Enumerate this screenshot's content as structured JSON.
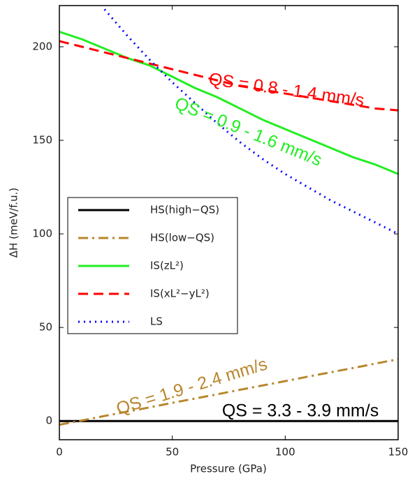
{
  "chart_data": {
    "type": "line",
    "xlabel": "Pressure (GPa)",
    "ylabel": "ΔH (meV/f.u.)",
    "x": [
      0,
      10,
      20,
      30,
      40,
      50,
      60,
      70,
      80,
      90,
      100,
      110,
      120,
      130,
      140,
      150
    ],
    "series": [
      {
        "name": "HS(high−QS)",
        "color": "#000000",
        "linestyle": "solid",
        "values": [
          0,
          0,
          0,
          0,
          0,
          0,
          0,
          0,
          0,
          0,
          0,
          0,
          0,
          0,
          0,
          0
        ]
      },
      {
        "name": "HS(low−QS)",
        "color": "#b8862b",
        "linestyle": "dashdot",
        "values": [
          -2,
          0.3,
          2.7,
          5,
          7.3,
          9.7,
          12,
          14.3,
          16.7,
          19,
          21.3,
          23.7,
          26,
          28.3,
          30.7,
          33
        ]
      },
      {
        "name": "IS(zL²)",
        "color": "#22ee22",
        "linestyle": "solid",
        "values": [
          208,
          204,
          199,
          194,
          190,
          184,
          178,
          173,
          167,
          161,
          156,
          151,
          146,
          141,
          137,
          132
        ]
      },
      {
        "name": "IS(xL²−yL²)",
        "color": "#ff0000",
        "linestyle": "dashed",
        "values": [
          203,
          200,
          197,
          194,
          191,
          188,
          185,
          182,
          179,
          177,
          175,
          173,
          171,
          169,
          167,
          166
        ]
      },
      {
        "name": "LS",
        "color": "#0000ff",
        "linestyle": "dotted",
        "values": [
          null,
          null,
          220,
          206,
          193,
          181,
          170,
          159,
          149,
          140,
          132,
          125,
          118,
          112,
          106,
          100
        ]
      }
    ],
    "annotations": [
      {
        "text": "QS = 0.8 - 1.4 mm/s",
        "color": "#ff0000"
      },
      {
        "text": "QS = 0.9 - 1.6 mm/s",
        "color": "#22ee22"
      },
      {
        "text": "QS = 1.9 - 2.4 mm/s",
        "color": "#b8862b"
      },
      {
        "text": "QS = 3.3 - 3.9 mm/s",
        "color": "#000000"
      }
    ],
    "xlim": [
      0,
      150
    ],
    "xticks": [
      0,
      50,
      100,
      150
    ],
    "ylim": [
      -10,
      222
    ],
    "yticks": [
      0,
      50,
      100,
      150,
      200
    ]
  }
}
